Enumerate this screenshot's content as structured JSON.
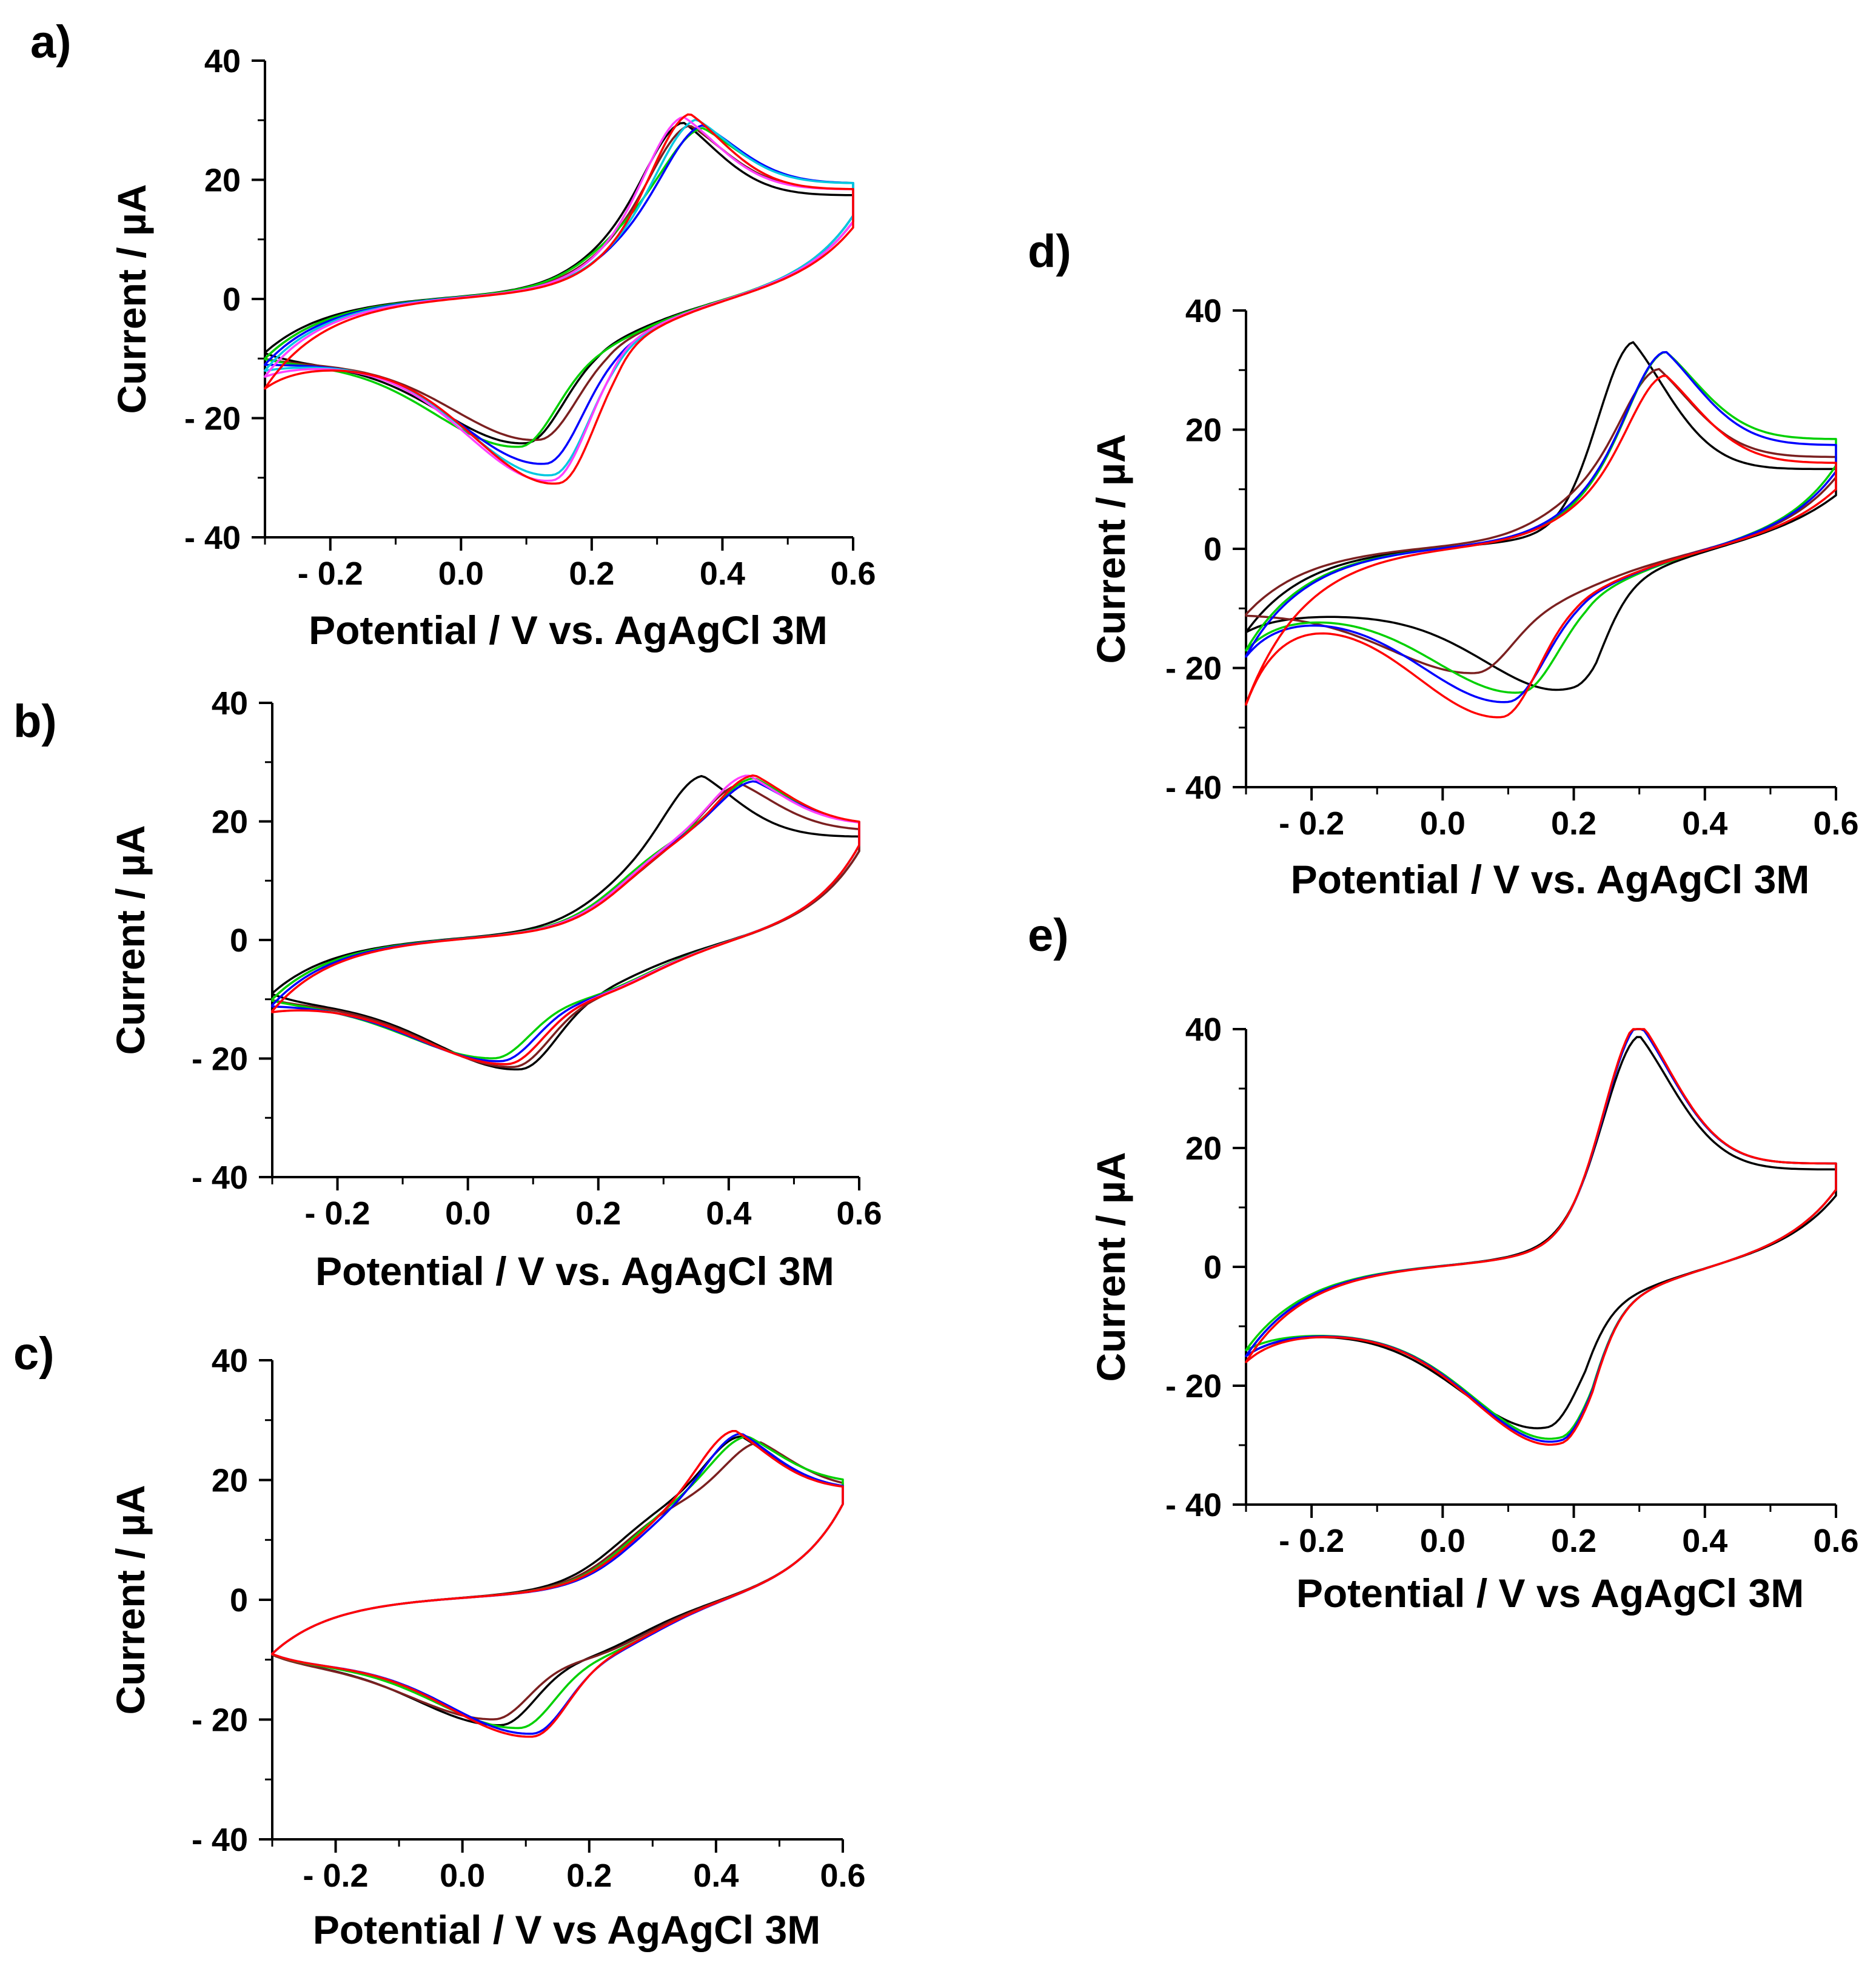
{
  "chart_data": [
    {
      "panel": "a)",
      "type": "line",
      "xlabel": "Potential / V vs. AgAgCl 3M",
      "ylabel": "Current / µA",
      "xlim": [
        -0.3,
        0.6
      ],
      "ylim": [
        -40,
        40
      ],
      "xticks": [
        -0.2,
        0.0,
        0.2,
        0.4,
        0.6
      ],
      "xtick_labels": [
        "- 0.2",
        "0.0",
        "0.2",
        "0.4",
        "0.6"
      ],
      "yticks": [
        -40,
        -20,
        0,
        20,
        40
      ],
      "ytick_labels": [
        "- 40",
        "- 20",
        "0",
        "20",
        "40"
      ],
      "series": [
        {
          "color": "#000000",
          "E_pa": 0.34,
          "I_pa": 26.5,
          "E_pc": 0.1,
          "I_pc": -24.5,
          "I_start": -9,
          "I_end_fwd": 17,
          "I_end_rev": 13
        },
        {
          "color": "#7b2020",
          "E_pa": 0.35,
          "I_pa": 26.0,
          "E_pc": 0.12,
          "I_pc": -24.0,
          "I_start": -10,
          "I_end_fwd": 18,
          "I_end_rev": 13
        },
        {
          "color": "#00d000",
          "E_pa": 0.37,
          "I_pa": 25.5,
          "E_pc": 0.09,
          "I_pc": -25.0,
          "I_start": -10,
          "I_end_fwd": 19,
          "I_end_rev": 14
        },
        {
          "color": "#0000ff",
          "E_pa": 0.37,
          "I_pa": 26.0,
          "E_pc": 0.13,
          "I_pc": -28.0,
          "I_start": -11,
          "I_end_fwd": 19,
          "I_end_rev": 14
        },
        {
          "color": "#00c8e0",
          "E_pa": 0.36,
          "I_pa": 27.0,
          "E_pc": 0.14,
          "I_pc": -30.0,
          "I_start": -12,
          "I_end_fwd": 19,
          "I_end_rev": 14
        },
        {
          "color": "#ff40ff",
          "E_pa": 0.34,
          "I_pa": 27.5,
          "E_pc": 0.14,
          "I_pc": -31.0,
          "I_start": -13,
          "I_end_fwd": 18,
          "I_end_rev": 13
        },
        {
          "color": "#ff0000",
          "E_pa": 0.35,
          "I_pa": 28.0,
          "E_pc": 0.15,
          "I_pc": -31.5,
          "I_start": -15,
          "I_end_fwd": 18,
          "I_end_rev": 12
        }
      ]
    },
    {
      "panel": "b)",
      "type": "line",
      "xlabel": "Potential / V vs. AgAgCl 3M",
      "ylabel": "Current / µA",
      "xlim": [
        -0.3,
        0.6
      ],
      "ylim": [
        -40,
        40
      ],
      "xticks": [
        -0.2,
        0.0,
        0.2,
        0.4,
        0.6
      ],
      "xtick_labels": [
        "- 0.2",
        "0.0",
        "0.2",
        "0.4",
        "0.6"
      ],
      "yticks": [
        -40,
        -20,
        0,
        20,
        40
      ],
      "ytick_labels": [
        "- 40",
        "- 20",
        "0",
        "20",
        "40"
      ],
      "series": [
        {
          "color": "#000000",
          "E_pa": 0.36,
          "I_pa": 24.5,
          "E_pc": 0.08,
          "I_pc": -22.0,
          "I_start": -9,
          "I_end_fwd": 17,
          "I_end_rev": 15
        },
        {
          "color": "#7b2020",
          "E_pa": 0.42,
          "I_pa": 23.0,
          "E_pc": 0.07,
          "I_pc": -21.5,
          "I_start": -10,
          "I_end_fwd": 18,
          "I_end_rev": 15
        },
        {
          "color": "#00d000",
          "E_pa": 0.44,
          "I_pa": 24.0,
          "E_pc": 0.04,
          "I_pc": -20.0,
          "I_start": -10,
          "I_end_fwd": 19,
          "I_end_rev": 16
        },
        {
          "color": "#0000ff",
          "E_pa": 0.44,
          "I_pa": 23.5,
          "E_pc": 0.05,
          "I_pc": -20.5,
          "I_start": -11,
          "I_end_fwd": 19,
          "I_end_rev": 16
        },
        {
          "color": "#ff40ff",
          "E_pa": 0.43,
          "I_pa": 24.5,
          "E_pc": 0.06,
          "I_pc": -21.0,
          "I_start": -12,
          "I_end_fwd": 19,
          "I_end_rev": 16
        },
        {
          "color": "#ff0000",
          "E_pa": 0.44,
          "I_pa": 24.5,
          "E_pc": 0.06,
          "I_pc": -21.0,
          "I_start": -12,
          "I_end_fwd": 19,
          "I_end_rev": 16
        }
      ]
    },
    {
      "panel": "c)",
      "type": "line",
      "xlabel": "Potential / V vs AgAgCl 3M",
      "ylabel": "Current / µA",
      "xlim": [
        -0.3,
        0.6
      ],
      "ylim": [
        -40,
        40
      ],
      "xticks": [
        -0.2,
        0.0,
        0.2,
        0.4,
        0.6
      ],
      "xtick_labels": [
        "- 0.2",
        "0.0",
        "0.2",
        "0.4",
        "0.6"
      ],
      "yticks": [
        -40,
        -20,
        0,
        20,
        40
      ],
      "ytick_labels": [
        "- 40",
        "- 20",
        "0",
        "20",
        "40"
      ],
      "series": [
        {
          "color": "#000000",
          "E_pa": 0.44,
          "I_pa": 24.0,
          "E_pc": 0.06,
          "I_pc": -21.0,
          "I_start": -9,
          "I_end_fwd": 18,
          "I_end_rev": 16
        },
        {
          "color": "#7b2020",
          "E_pa": 0.47,
          "I_pa": 23.0,
          "E_pc": 0.05,
          "I_pc": -20.0,
          "I_start": -9,
          "I_end_fwd": 18,
          "I_end_rev": 16
        },
        {
          "color": "#00d000",
          "E_pa": 0.45,
          "I_pa": 24.0,
          "E_pc": 0.09,
          "I_pc": -21.5,
          "I_start": -9,
          "I_end_fwd": 19,
          "I_end_rev": 16
        },
        {
          "color": "#0000ff",
          "E_pa": 0.44,
          "I_pa": 24.5,
          "E_pc": 0.11,
          "I_pc": -22.5,
          "I_start": -9,
          "I_end_fwd": 18,
          "I_end_rev": 16
        },
        {
          "color": "#ff40ff",
          "E_pa": 0.43,
          "I_pa": 25.0,
          "E_pc": 0.11,
          "I_pc": -23.0,
          "I_start": -9,
          "I_end_fwd": 18,
          "I_end_rev": 16
        },
        {
          "color": "#ff0000",
          "E_pa": 0.43,
          "I_pa": 25.0,
          "E_pc": 0.11,
          "I_pc": -23.0,
          "I_start": -9,
          "I_end_fwd": 18,
          "I_end_rev": 16
        }
      ]
    },
    {
      "panel": "d)",
      "type": "line",
      "xlabel": "Potential / V vs. AgAgCl 3M",
      "ylabel": "Current / µA",
      "xlim": [
        -0.3,
        0.6
      ],
      "ylim": [
        -40,
        40
      ],
      "xticks": [
        -0.2,
        0.0,
        0.2,
        0.4,
        0.6
      ],
      "xtick_labels": [
        "- 0.2",
        "0.0",
        "0.2",
        "0.4",
        "0.6"
      ],
      "yticks": [
        -40,
        -20,
        0,
        20,
        40
      ],
      "ytick_labels": [
        "- 40",
        "- 20",
        "0",
        "20",
        "40"
      ],
      "series": [
        {
          "color": "#000000",
          "E_pa": 0.29,
          "I_pa": 32.0,
          "E_pc": 0.2,
          "I_pc": -25.0,
          "I_start": -14,
          "I_end_fwd": 13,
          "I_end_rev": 9
        },
        {
          "color": "#7b2020",
          "E_pa": 0.33,
          "I_pa": 27.0,
          "E_pc": 0.05,
          "I_pc": -21.0,
          "I_start": -11,
          "I_end_fwd": 15,
          "I_end_rev": 12
        },
        {
          "color": "#00d000",
          "E_pa": 0.34,
          "I_pa": 30.0,
          "E_pc": 0.12,
          "I_pc": -24.5,
          "I_start": -17,
          "I_end_fwd": 18,
          "I_end_rev": 14
        },
        {
          "color": "#0000ff",
          "E_pa": 0.34,
          "I_pa": 30.0,
          "E_pc": 0.1,
          "I_pc": -26.0,
          "I_start": -18,
          "I_end_fwd": 17,
          "I_end_rev": 13
        },
        {
          "color": "#ff0000",
          "E_pa": 0.34,
          "I_pa": 26.0,
          "E_pc": 0.09,
          "I_pc": -28.5,
          "I_start": -26,
          "I_end_fwd": 14,
          "I_end_rev": 10
        }
      ]
    },
    {
      "panel": "e)",
      "type": "line",
      "xlabel": "Potential / V vs AgAgCl 3M",
      "ylabel": "Current / µA",
      "xlim": [
        -0.3,
        0.6
      ],
      "ylim": [
        -40,
        40
      ],
      "xticks": [
        -0.2,
        0.0,
        0.2,
        0.4,
        0.6
      ],
      "xtick_labels": [
        "- 0.2",
        "0.0",
        "0.2",
        "0.4",
        "0.6"
      ],
      "yticks": [
        -40,
        -20,
        0,
        20,
        40
      ],
      "ytick_labels": [
        "- 40",
        "- 20",
        "0",
        "20",
        "40"
      ],
      "series": [
        {
          "color": "#000000",
          "E_pa": 0.3,
          "I_pa": 36.0,
          "E_pc": 0.16,
          "I_pc": -28.0,
          "I_start": -15,
          "I_end_fwd": 16,
          "I_end_rev": 12
        },
        {
          "color": "#00d000",
          "E_pa": 0.3,
          "I_pa": 38.0,
          "E_pc": 0.18,
          "I_pc": -30.0,
          "I_start": -14,
          "I_end_fwd": 17,
          "I_end_rev": 13
        },
        {
          "color": "#0000ff",
          "E_pa": 0.3,
          "I_pa": 38.0,
          "E_pc": 0.18,
          "I_pc": -30.5,
          "I_start": -15,
          "I_end_fwd": 17,
          "I_end_rev": 13
        },
        {
          "color": "#ff0000",
          "E_pa": 0.3,
          "I_pa": 38.5,
          "E_pc": 0.18,
          "I_pc": -31.0,
          "I_start": -16,
          "I_end_fwd": 17,
          "I_end_rev": 13
        }
      ]
    }
  ]
}
